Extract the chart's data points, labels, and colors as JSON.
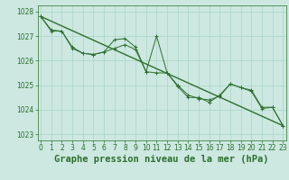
{
  "line_jagged": {
    "x": [
      0,
      1,
      2,
      3,
      4,
      5,
      6,
      7,
      8,
      9,
      10,
      11,
      12,
      13,
      14,
      15,
      16,
      17,
      18,
      19,
      20,
      21,
      22,
      23
    ],
    "y": [
      1027.8,
      1027.2,
      1027.2,
      1026.5,
      1026.3,
      1026.25,
      1026.35,
      1026.85,
      1026.9,
      1026.55,
      1025.55,
      1027.0,
      1025.5,
      1024.95,
      1024.5,
      1024.5,
      1024.3,
      1024.6,
      1025.05,
      1024.9,
      1024.8,
      1024.1,
      1024.1,
      1023.35
    ]
  },
  "line_smooth": {
    "x": [
      0,
      1,
      2,
      3,
      4,
      5,
      6,
      7,
      8,
      9,
      10,
      11,
      12,
      13,
      14,
      15,
      16,
      17,
      18,
      19,
      20,
      21,
      22,
      23
    ],
    "y": [
      1027.8,
      1027.25,
      1027.2,
      1026.55,
      1026.3,
      1026.25,
      1026.35,
      1026.5,
      1026.65,
      1026.45,
      1025.55,
      1025.5,
      1025.5,
      1025.0,
      1024.6,
      1024.45,
      1024.4,
      1024.55,
      1025.05,
      1024.9,
      1024.75,
      1024.05,
      1024.1,
      1023.35
    ]
  },
  "trend_line": {
    "x": [
      0,
      23
    ],
    "y": [
      1027.8,
      1023.35
    ]
  },
  "ylim": [
    1022.75,
    1028.25
  ],
  "xlim": [
    -0.3,
    23.3
  ],
  "yticks": [
    1023,
    1024,
    1025,
    1026,
    1027,
    1028
  ],
  "xticks": [
    0,
    1,
    2,
    3,
    4,
    5,
    6,
    7,
    8,
    9,
    10,
    11,
    12,
    13,
    14,
    15,
    16,
    17,
    18,
    19,
    20,
    21,
    22,
    23
  ],
  "xlabel": "Graphe pression niveau de la mer (hPa)",
  "bg_color": "#cce8e0",
  "grid_color": "#aad4c8",
  "line_color": "#2d6e2d",
  "tick_fontsize": 5.5,
  "xlabel_fontsize": 7.5
}
